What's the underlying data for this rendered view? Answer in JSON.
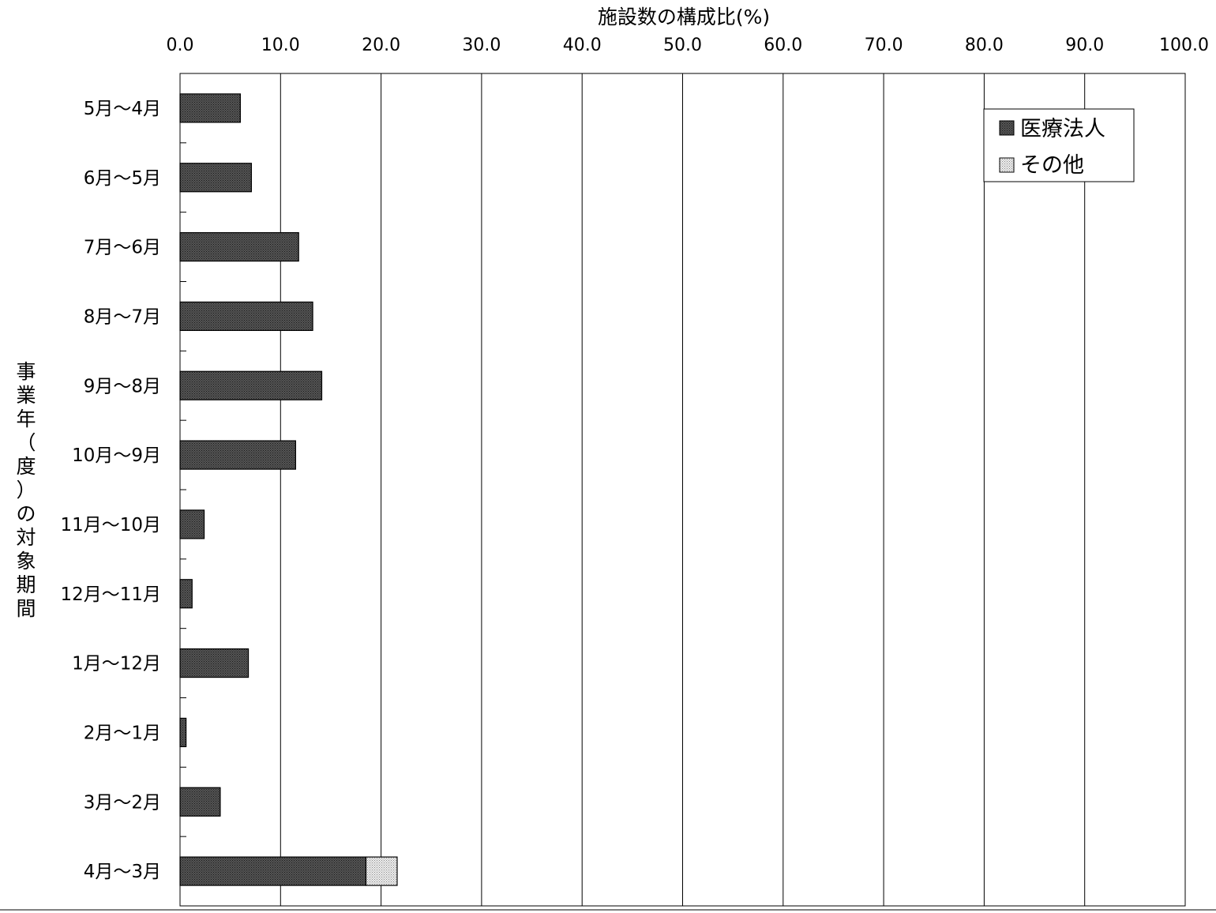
{
  "chart_data": {
    "type": "bar",
    "orientation": "horizontal",
    "stacked": true,
    "xlabel": "施設数の構成比(%)",
    "ylabel": "事業年（度）の対象期間",
    "xlim": [
      0,
      100
    ],
    "x_ticks": [
      "0.0",
      "10.0",
      "20.0",
      "30.0",
      "40.0",
      "50.0",
      "60.0",
      "70.0",
      "80.0",
      "90.0",
      "100.0"
    ],
    "x_axis_position": "top",
    "grid": true,
    "legend_position": "top-right",
    "categories": [
      "5月～4月",
      "6月～5月",
      "7月～6月",
      "8月～7月",
      "9月～8月",
      "10月～9月",
      "11月～10月",
      "12月～11月",
      "1月～12月",
      "2月～1月",
      "3月～2月",
      "4月～3月"
    ],
    "series": [
      {
        "name": "医療法人",
        "color": "#3a3a3a",
        "values": [
          6.0,
          7.1,
          11.8,
          13.2,
          14.1,
          11.5,
          2.4,
          1.2,
          6.8,
          0.6,
          4.0,
          18.5
        ]
      },
      {
        "name": "その他",
        "color": "#d0d0d0",
        "values": [
          0,
          0,
          0,
          0,
          0,
          0,
          0,
          0,
          0,
          0,
          0,
          3.1
        ]
      }
    ]
  }
}
